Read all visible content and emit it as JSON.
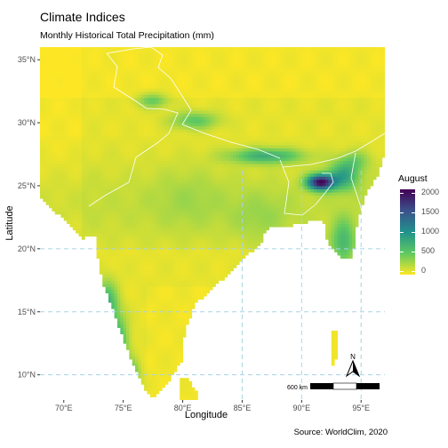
{
  "title": "Climate Indices",
  "subtitle": "Monthly Historical Total Precipitation (mm)",
  "caption": "Source: WorldClim, 2020",
  "chart_data": {
    "type": "heatmap",
    "variable": "Monthly Historical Total Precipitation (mm)",
    "month": "August",
    "xlabel": "Longitude",
    "ylabel": "Latitude",
    "xlim": [
      68,
      97
    ],
    "ylim": [
      8,
      36
    ],
    "x_ticks": [
      "70°E",
      "75°E",
      "80°E",
      "85°E",
      "90°E",
      "95°E"
    ],
    "y_ticks": [
      "10°N",
      "15°N",
      "20°N",
      "25°N",
      "30°N",
      "35°N"
    ],
    "grid": true,
    "palette": [
      "#440154",
      "#3b528b",
      "#21918c",
      "#5ec962",
      "#fde725"
    ],
    "legend": {
      "title": "August",
      "ticks": [
        "2000",
        "1500",
        "1000",
        "500",
        "0"
      ],
      "min": 0,
      "max": 2000,
      "placement": "right"
    }
  },
  "scale_bar": {
    "label": "600 km"
  },
  "north_arrow": {
    "label": "N"
  }
}
